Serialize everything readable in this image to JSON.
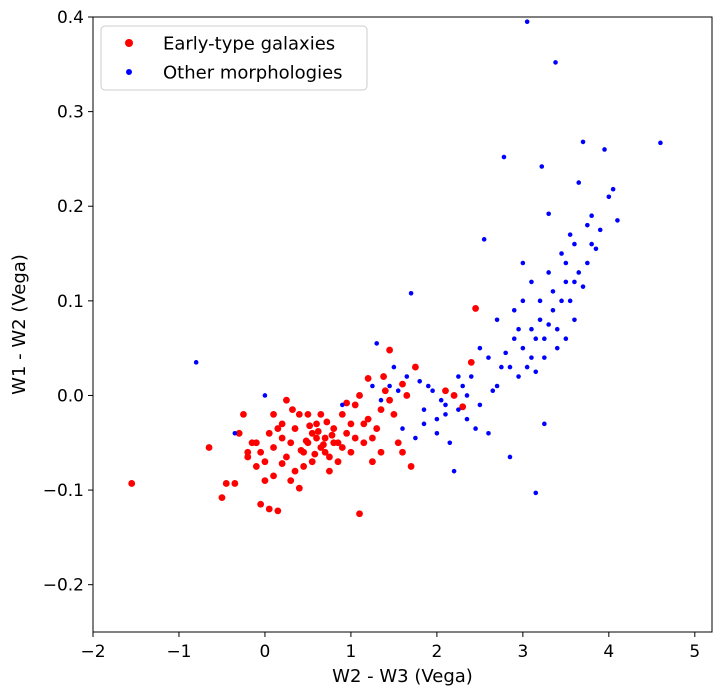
{
  "chart_data": {
    "type": "scatter",
    "title": "",
    "xlabel": "W2 - W3 (Vega)",
    "ylabel": "W1 - W2 (Vega)",
    "xlim": [
      -2,
      5.2
    ],
    "ylim": [
      -0.25,
      0.4
    ],
    "xticks": [
      -2,
      -1,
      0,
      1,
      2,
      3,
      4,
      5
    ],
    "xtick_labels": [
      "−2",
      "−1",
      "0",
      "1",
      "2",
      "3",
      "4",
      "5"
    ],
    "yticks": [
      -0.2,
      -0.1,
      0.0,
      0.1,
      0.2,
      0.3,
      0.4
    ],
    "ytick_labels": [
      "−0.2",
      "−0.1",
      "0.0",
      "0.1",
      "0.2",
      "0.3",
      "0.4"
    ],
    "grid": false,
    "legend_position": "top-left",
    "series": [
      {
        "name": "Early-type galaxies",
        "color": "#ff0000",
        "marker": "large-dot",
        "points": [
          [
            -1.55,
            -0.093
          ],
          [
            -0.65,
            -0.055
          ],
          [
            -0.5,
            -0.108
          ],
          [
            -0.45,
            -0.093
          ],
          [
            -0.35,
            -0.093
          ],
          [
            -0.3,
            -0.04
          ],
          [
            -0.25,
            -0.02
          ],
          [
            -0.2,
            -0.06
          ],
          [
            -0.15,
            -0.05
          ],
          [
            -0.1,
            -0.075
          ],
          [
            -0.05,
            -0.115
          ],
          [
            0.0,
            -0.09
          ],
          [
            0.05,
            -0.12
          ],
          [
            0.15,
            -0.122
          ],
          [
            0.1,
            -0.085
          ],
          [
            0.2,
            -0.072
          ],
          [
            0.3,
            -0.09
          ],
          [
            0.35,
            -0.08
          ],
          [
            0.4,
            -0.098
          ],
          [
            0.45,
            -0.06
          ],
          [
            0.5,
            -0.05
          ],
          [
            0.55,
            -0.04
          ],
          [
            0.6,
            -0.03
          ],
          [
            0.65,
            -0.055
          ],
          [
            0.7,
            -0.045
          ],
          [
            0.75,
            -0.065
          ],
          [
            0.8,
            -0.035
          ],
          [
            0.85,
            -0.05
          ],
          [
            0.9,
            -0.02
          ],
          [
            0.95,
            -0.04
          ],
          [
            1.0,
            -0.03
          ],
          [
            1.05,
            -0.01
          ],
          [
            1.1,
            -0.125
          ],
          [
            1.15,
            -0.05
          ],
          [
            1.2,
            -0.025
          ],
          [
            1.25,
            -0.07
          ],
          [
            1.3,
            -0.035
          ],
          [
            1.35,
            -0.015
          ],
          [
            1.4,
            0.005
          ],
          [
            1.45,
            0.048
          ],
          [
            1.5,
            -0.02
          ],
          [
            1.55,
            -0.05
          ],
          [
            1.6,
            -0.06
          ],
          [
            1.65,
            0.0
          ],
          [
            1.75,
            0.03
          ],
          [
            1.7,
            -0.075
          ],
          [
            2.2,
            0.0
          ],
          [
            2.3,
            -0.012
          ],
          [
            2.4,
            0.035
          ],
          [
            2.45,
            0.092
          ],
          [
            0.05,
            -0.04
          ],
          [
            0.1,
            -0.02
          ],
          [
            0.2,
            -0.03
          ],
          [
            0.25,
            -0.005
          ],
          [
            0.3,
            -0.05
          ],
          [
            0.4,
            -0.02
          ],
          [
            0.5,
            -0.02
          ],
          [
            0.55,
            -0.07
          ],
          [
            0.6,
            -0.045
          ],
          [
            0.65,
            -0.02
          ],
          [
            0.7,
            -0.06
          ],
          [
            0.75,
            -0.08
          ],
          [
            0.8,
            -0.05
          ],
          [
            0.85,
            -0.07
          ],
          [
            0.9,
            -0.055
          ],
          [
            1.0,
            -0.06
          ],
          [
            1.05,
            -0.045
          ],
          [
            1.15,
            -0.03
          ],
          [
            1.25,
            -0.045
          ],
          [
            1.35,
            -0.06
          ],
          [
            -0.05,
            -0.06
          ],
          [
            0.0,
            -0.07
          ],
          [
            0.1,
            -0.055
          ],
          [
            0.2,
            -0.045
          ],
          [
            0.35,
            -0.035
          ],
          [
            0.45,
            -0.075
          ],
          [
            0.62,
            -0.038
          ],
          [
            0.68,
            -0.052
          ],
          [
            0.72,
            -0.028
          ],
          [
            0.78,
            -0.042
          ],
          [
            0.58,
            -0.062
          ],
          [
            0.52,
            -0.032
          ],
          [
            0.48,
            -0.048
          ],
          [
            0.42,
            -0.058
          ],
          [
            1.38,
            0.02
          ],
          [
            1.2,
            0.018
          ],
          [
            1.1,
            0.0
          ],
          [
            0.95,
            -0.008
          ],
          [
            1.45,
            -0.005
          ],
          [
            1.6,
            0.012
          ],
          [
            2.1,
            0.005
          ],
          [
            -0.2,
            -0.065
          ],
          [
            -0.1,
            -0.05
          ],
          [
            0.25,
            -0.065
          ],
          [
            0.15,
            -0.035
          ],
          [
            0.32,
            -0.015
          ]
        ]
      },
      {
        "name": "Other morphologies",
        "color": "#0000ff",
        "marker": "small-dot",
        "points": [
          [
            -0.8,
            0.035
          ],
          [
            0.0,
            0.0
          ],
          [
            -0.35,
            -0.04
          ],
          [
            0.9,
            -0.01
          ],
          [
            1.3,
            0.055
          ],
          [
            1.5,
            0.03
          ],
          [
            1.7,
            0.108
          ],
          [
            1.9,
            0.01
          ],
          [
            2.0,
            -0.025
          ],
          [
            2.1,
            -0.01
          ],
          [
            2.15,
            -0.05
          ],
          [
            2.2,
            -0.08
          ],
          [
            2.3,
            0.01
          ],
          [
            2.4,
            0.02
          ],
          [
            2.5,
            0.05
          ],
          [
            2.55,
            0.165
          ],
          [
            2.6,
            -0.04
          ],
          [
            2.7,
            0.08
          ],
          [
            2.75,
            0.03
          ],
          [
            2.78,
            0.252
          ],
          [
            2.85,
            -0.065
          ],
          [
            2.9,
            0.06
          ],
          [
            2.95,
            0.02
          ],
          [
            3.0,
            0.14
          ],
          [
            3.05,
            0.395
          ],
          [
            3.1,
            0.07
          ],
          [
            3.15,
            -0.103
          ],
          [
            3.2,
            0.1
          ],
          [
            3.22,
            0.242
          ],
          [
            3.25,
            0.04
          ],
          [
            3.3,
            0.192
          ],
          [
            3.35,
            0.11
          ],
          [
            3.38,
            0.352
          ],
          [
            3.4,
            0.07
          ],
          [
            3.45,
            0.15
          ],
          [
            3.5,
            0.12
          ],
          [
            3.55,
            0.17
          ],
          [
            3.6,
            0.08
          ],
          [
            3.65,
            0.225
          ],
          [
            3.7,
            0.268
          ],
          [
            3.75,
            0.14
          ],
          [
            3.8,
            0.19
          ],
          [
            3.85,
            0.155
          ],
          [
            3.9,
            0.175
          ],
          [
            3.95,
            0.26
          ],
          [
            4.0,
            0.21
          ],
          [
            4.05,
            0.218
          ],
          [
            4.1,
            0.185
          ],
          [
            4.6,
            0.267
          ],
          [
            3.25,
            -0.03
          ],
          [
            2.45,
            -0.035
          ],
          [
            2.65,
            0.005
          ],
          [
            2.8,
            0.045
          ],
          [
            2.9,
            0.09
          ],
          [
            3.0,
            0.05
          ],
          [
            3.05,
            0.03
          ],
          [
            3.1,
            0.12
          ],
          [
            3.15,
            0.06
          ],
          [
            3.2,
            0.08
          ],
          [
            3.3,
            0.13
          ],
          [
            3.35,
            0.09
          ],
          [
            3.45,
            0.1
          ],
          [
            3.5,
            0.14
          ],
          [
            3.55,
            0.1
          ],
          [
            3.6,
            0.16
          ],
          [
            3.7,
            0.115
          ],
          [
            3.75,
            0.18
          ],
          [
            2.35,
            0.0
          ],
          [
            2.25,
            0.02
          ],
          [
            2.05,
            -0.005
          ],
          [
            1.95,
            0.005
          ],
          [
            1.85,
            -0.015
          ],
          [
            1.8,
            0.015
          ],
          [
            1.65,
            0.02
          ],
          [
            1.55,
            0.005
          ],
          [
            1.45,
            0.01
          ],
          [
            1.35,
            -0.005
          ],
          [
            1.25,
            0.01
          ],
          [
            1.6,
            -0.035
          ],
          [
            1.75,
            -0.045
          ],
          [
            1.85,
            -0.03
          ],
          [
            2.0,
            -0.04
          ],
          [
            2.1,
            -0.02
          ],
          [
            2.25,
            -0.015
          ],
          [
            2.35,
            -0.025
          ],
          [
            2.5,
            -0.01
          ],
          [
            2.6,
            0.04
          ],
          [
            2.7,
            0.01
          ],
          [
            2.85,
            0.03
          ],
          [
            2.95,
            0.07
          ],
          [
            3.0,
            0.1
          ],
          [
            3.1,
            0.04
          ],
          [
            3.15,
            0.025
          ],
          [
            3.25,
            0.06
          ],
          [
            3.3,
            0.075
          ],
          [
            3.4,
            0.05
          ],
          [
            3.5,
            0.06
          ],
          [
            3.6,
            0.12
          ],
          [
            3.65,
            0.13
          ],
          [
            3.8,
            0.16
          ]
        ]
      }
    ]
  }
}
